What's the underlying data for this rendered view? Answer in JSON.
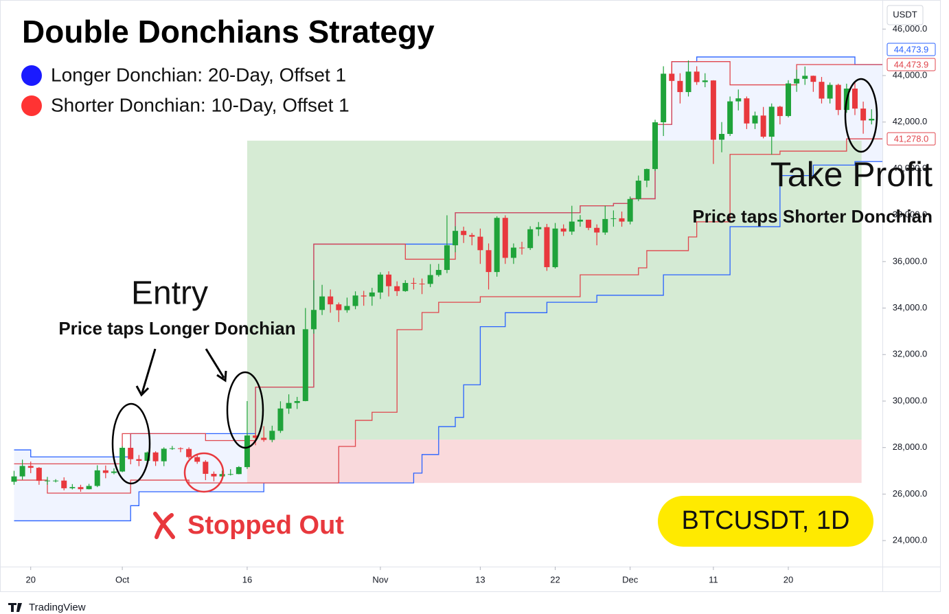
{
  "chart_data": {
    "type": "candlestick",
    "title": "Double Donchians Strategy",
    "legend": [
      {
        "label": "Longer Donchian: 20-Day, Offset 1",
        "color": "#1a1aff"
      },
      {
        "label": "Shorter Donchian: 10-Day, Offset 1",
        "color": "#ff3333"
      }
    ],
    "currency": "USDT",
    "footer": "TradingView",
    "up_color": "#1fa33a",
    "down_color": "#e8383d",
    "xlim": [
      -0.7,
      104.3
    ],
    "ylim": [
      22880,
      47250
    ],
    "xticks": [
      {
        "value": 2,
        "label": "20"
      },
      {
        "value": 13,
        "label": "Oct"
      },
      {
        "value": 28,
        "label": "16"
      },
      {
        "value": 44,
        "label": "Nov"
      },
      {
        "value": 56,
        "label": "13"
      },
      {
        "value": 65,
        "label": "22"
      },
      {
        "value": 74,
        "label": "Dec"
      },
      {
        "value": 84,
        "label": "11"
      },
      {
        "value": 93,
        "label": "20"
      }
    ],
    "yticks": [
      {
        "value": 24000,
        "label": "24,000.0"
      },
      {
        "value": 26000,
        "label": "26,000.0"
      },
      {
        "value": 28000,
        "label": "28,000.0"
      },
      {
        "value": 30000,
        "label": "30,000.0"
      },
      {
        "value": 32000,
        "label": "32,000.0"
      },
      {
        "value": 34000,
        "label": "34,000.0"
      },
      {
        "value": 36000,
        "label": "36,000.0"
      },
      {
        "value": 38000,
        "label": "38,000.0"
      },
      {
        "value": 40000,
        "label": "40,000.0"
      },
      {
        "value": 42000,
        "label": "42,000.0"
      },
      {
        "value": 44000,
        "label": "44,000.0"
      },
      {
        "value": 46000,
        "label": "46,000.0"
      }
    ],
    "x": [
      0,
      1,
      2,
      3,
      4,
      5,
      6,
      7,
      8,
      9,
      10,
      11,
      12,
      13,
      14,
      15,
      16,
      17,
      18,
      19,
      20,
      21,
      22,
      23,
      24,
      25,
      26,
      27,
      28,
      29,
      30,
      31,
      32,
      33,
      34,
      35,
      36,
      37,
      38,
      39,
      40,
      41,
      42,
      43,
      44,
      45,
      46,
      47,
      48,
      49,
      50,
      51,
      52,
      53,
      54,
      55,
      56,
      57,
      58,
      59,
      60,
      61,
      62,
      63,
      64,
      65,
      66,
      67,
      68,
      69,
      70,
      71,
      72,
      73,
      74,
      75,
      76,
      77,
      78,
      79,
      80,
      81,
      82,
      83,
      84,
      85,
      86,
      87,
      88,
      89,
      90,
      91,
      92,
      93,
      94,
      95,
      96,
      97,
      98,
      99,
      100,
      101,
      102,
      103
    ],
    "open": [
      26530,
      26760,
      27210,
      27130,
      26570,
      26580,
      26580,
      26250,
      26300,
      26210,
      26350,
      27020,
      26910,
      26970,
      27990,
      27500,
      27430,
      27790,
      27410,
      27950,
      27970,
      27940,
      27590,
      27390,
      26870,
      26760,
      26860,
      26860,
      27160,
      28520,
      28420,
      28330,
      28720,
      29680,
      29920,
      30000,
      33090,
      33920,
      34500,
      34160,
      33910,
      34090,
      34540,
      34500,
      34670,
      35440,
      34940,
      34730,
      35080,
      35050,
      35040,
      35420,
      35640,
      36700,
      37320,
      37140,
      37070,
      36490,
      35550,
      37880,
      36160,
      36600,
      36580,
      37390,
      37480,
      35760,
      37420,
      37290,
      37720,
      37800,
      37450,
      37250,
      37830,
      37860,
      37720,
      38690,
      39480,
      39980,
      41990,
      44080,
      43770,
      43290,
      44170,
      43720,
      43790,
      41240,
      41490,
      42890,
      43020,
      41940,
      42280,
      41370,
      42660,
      42260,
      43660,
      43860,
      43990,
      43730,
      43010,
      43600,
      42520,
      43440,
      42580,
      42070
    ],
    "high": [
      27000,
      27480,
      27400,
      27160,
      26740,
      26640,
      26720,
      26430,
      26400,
      26440,
      27240,
      27230,
      27110,
      28060,
      28580,
      27680,
      27830,
      27840,
      28010,
      28070,
      28010,
      28010,
      27720,
      27460,
      26970,
      27010,
      27070,
      27200,
      30000,
      28600,
      28920,
      28940,
      29990,
      30290,
      30180,
      34000,
      35200,
      35000,
      34800,
      34240,
      34450,
      34720,
      34740,
      34870,
      35540,
      35580,
      35150,
      35200,
      35300,
      35270,
      35890,
      35900,
      37990,
      37520,
      37500,
      37230,
      37420,
      36780,
      37950,
      37990,
      36780,
      36850,
      37520,
      37700,
      37620,
      37660,
      37600,
      38400,
      38000,
      37800,
      37600,
      38400,
      38200,
      38150,
      38800,
      39700,
      40000,
      42100,
      44400,
      44500,
      44100,
      44650,
      44400,
      44100,
      43800,
      42000,
      43100,
      43400,
      43100,
      42450,
      42650,
      42800,
      42700,
      43800,
      44250,
      44390,
      44000,
      43940,
      43700,
      43650,
      43650,
      43700,
      42880,
      42550
    ],
    "low": [
      26400,
      26620,
      26900,
      26400,
      26400,
      26500,
      26160,
      26200,
      26100,
      26200,
      26300,
      26680,
      26850,
      26940,
      27280,
      27200,
      27280,
      27210,
      27200,
      27900,
      27800,
      27520,
      27300,
      26600,
      26550,
      26720,
      26800,
      26850,
      27080,
      28100,
      28250,
      28230,
      28630,
      29450,
      29660,
      29990,
      32900,
      33700,
      33800,
      33400,
      33800,
      33950,
      34100,
      34100,
      34390,
      34500,
      34520,
      34700,
      34800,
      34600,
      34900,
      35350,
      35500,
      36400,
      36800,
      36700,
      35900,
      34800,
      35350,
      35900,
      35900,
      36300,
      36500,
      37100,
      35600,
      35700,
      37100,
      37150,
      37500,
      37350,
      36700,
      37150,
      37500,
      37500,
      37600,
      38600,
      39200,
      39900,
      41400,
      43400,
      42800,
      43100,
      43600,
      43500,
      40200,
      40700,
      41400,
      42500,
      41700,
      41700,
      41300,
      40600,
      41900,
      42200,
      43300,
      43600,
      43300,
      42800,
      42800,
      42300,
      42400,
      42300,
      41500,
      41900
    ],
    "close": [
      26760,
      27210,
      27130,
      26570,
      26580,
      26580,
      26250,
      26300,
      26210,
      26350,
      27020,
      26910,
      26970,
      27990,
      27500,
      27430,
      27790,
      27410,
      27950,
      27970,
      27940,
      27590,
      27390,
      26870,
      26760,
      26860,
      26860,
      27160,
      28520,
      28420,
      28330,
      28720,
      29680,
      29920,
      30000,
      33090,
      33920,
      34500,
      34160,
      33910,
      34090,
      34540,
      34500,
      34670,
      35440,
      34940,
      34730,
      35080,
      35050,
      35040,
      35420,
      35640,
      36700,
      37320,
      37140,
      37070,
      36490,
      35550,
      37880,
      36160,
      36600,
      36580,
      37390,
      37480,
      35760,
      37420,
      37290,
      37720,
      37800,
      37450,
      37250,
      37830,
      37860,
      37720,
      38690,
      39480,
      39980,
      41990,
      44080,
      43770,
      43290,
      44170,
      43720,
      43790,
      41240,
      41490,
      42890,
      43020,
      41940,
      42280,
      41370,
      42660,
      42260,
      43660,
      43860,
      43990,
      43730,
      43010,
      43600,
      42520,
      43440,
      42580,
      42070,
      42140
    ],
    "step": true,
    "bands": [
      {
        "color": "#2962ff",
        "x": [
          0,
          2,
          14,
          29,
          36,
          53,
          68,
          72,
          74,
          77,
          79,
          82,
          101
        ],
        "values": [
          27900,
          27600,
          28600,
          30600,
          36750,
          38100,
          38400,
          38500,
          38700,
          41900,
          44600,
          44800,
          44474
        ]
      },
      {
        "color": "#2962ff",
        "x": [
          0,
          14,
          15,
          30,
          48,
          49,
          51,
          53,
          54,
          56,
          59,
          64,
          70,
          78,
          86,
          92,
          96,
          101
        ],
        "values": [
          24850,
          25500,
          26100,
          26480,
          26900,
          27700,
          28900,
          29300,
          30700,
          33200,
          33800,
          34250,
          34550,
          35430,
          37500,
          39700,
          40150,
          40300
        ]
      },
      {
        "color": "#e0454c",
        "x": [
          0,
          13,
          23,
          29,
          36,
          47,
          53,
          68,
          72,
          74,
          77,
          79,
          86,
          94
        ],
        "values": [
          27300,
          28600,
          28300,
          30600,
          36750,
          36100,
          38100,
          38400,
          38500,
          38700,
          41900,
          44600,
          43600,
          44474
        ]
      },
      {
        "color": "#e0454c",
        "x": [
          0,
          4,
          14,
          21,
          39,
          41,
          43,
          46,
          49,
          51,
          56,
          68,
          75,
          76,
          81,
          82,
          86,
          92,
          100
        ],
        "values": [
          26600,
          26040,
          26600,
          26480,
          28050,
          29170,
          29520,
          33070,
          33810,
          34250,
          34490,
          35430,
          35730,
          36470,
          37060,
          37710,
          40610,
          40750,
          41278
        ]
      }
    ],
    "position": {
      "x": [
        28,
        101.8
      ],
      "entry": 28340,
      "target": 41200,
      "stop": 26480,
      "profit_color": "#cfe8cd",
      "loss_color": "#f9d6d8"
    },
    "price_labels": [
      {
        "value": 44473.9,
        "label": "44,473.9",
        "color": "#2962ff"
      },
      {
        "value": 44473.9,
        "label": "44,473.9",
        "color": "#e0454c"
      },
      {
        "value": 41278.0,
        "label": "41,278.0",
        "color": "#e0454c"
      }
    ],
    "annotations": {
      "entry": "Entry",
      "entry_note": "Price taps Longer Donchian",
      "exit": "Take Profit",
      "exit_note": "Price taps Shorter Donchian",
      "stop": "Stopped Out",
      "symbol": "BTCUSDT, 1D"
    }
  }
}
